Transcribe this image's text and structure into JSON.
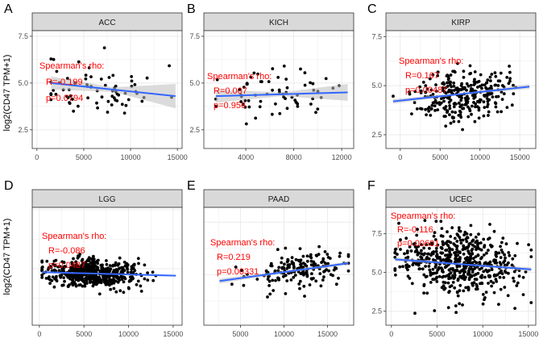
{
  "figure": {
    "ylabel": "log2(CD47 TPM+1)",
    "colors": {
      "strip": "#d9d9d9",
      "panel_border": "#333333",
      "grid": "#ebebeb",
      "point": "#000000",
      "fit_line": "#3366ff",
      "band": "#bdbdbd",
      "annotation": "#ff0000"
    }
  },
  "chart_data": [
    {
      "type": "scatter",
      "letter": "A",
      "title": "ACC",
      "annotation": [
        "Spearman's rho:",
        "R=-0.199",
        "p=0.0794"
      ],
      "xlim": [
        -500,
        15500
      ],
      "ylim": [
        1.5,
        7.8
      ],
      "xticks": [
        0,
        5000,
        10000,
        15000
      ],
      "xtick_labels": [
        "0",
        "5000",
        "10000",
        "15000"
      ],
      "yticks": [
        2.5,
        5.0,
        7.5
      ],
      "ytick_labels": [
        "2.5",
        "5.0",
        "7.5"
      ],
      "fit": {
        "x": [
          1500,
          14800
        ],
        "y": [
          5.0,
          4.3
        ]
      },
      "band_halfwidth": [
        0.35,
        0.12,
        0.65
      ],
      "n": 70,
      "x_center": 6500,
      "x_spread": 3300,
      "x_range": [
        1500,
        14800
      ],
      "y_spread": 0.8,
      "seed": 11
    },
    {
      "type": "scatter",
      "letter": "B",
      "title": "KICH",
      "annotation": [
        "Spearman's rho:",
        "R=0.007",
        "p=0.956"
      ],
      "xlim": [
        500,
        13000
      ],
      "ylim": [
        1.5,
        7.8
      ],
      "xticks": [
        4000,
        8000,
        12000
      ],
      "xtick_labels": [
        "4000",
        "8000",
        "12000"
      ],
      "yticks": [
        2.5,
        5.0,
        7.5
      ],
      "ytick_labels": [
        "2.5",
        "5.0",
        "7.5"
      ],
      "fit": {
        "x": [
          1500,
          12500
        ],
        "y": [
          4.3,
          4.5
        ]
      },
      "band_halfwidth": [
        0.35,
        0.1,
        0.45
      ],
      "n": 66,
      "x_center": 6500,
      "x_spread": 2300,
      "x_range": [
        1500,
        12500
      ],
      "y_spread": 0.6,
      "seed": 23
    },
    {
      "type": "scatter",
      "letter": "C",
      "title": "KIRP",
      "annotation": [
        "Spearman's rho:",
        "R=0.167",
        "p=0.00487"
      ],
      "xlim": [
        -1800,
        17000
      ],
      "ylim": [
        1.8,
        7.8
      ],
      "xticks": [
        0,
        5000,
        10000,
        15000
      ],
      "xtick_labels": [
        "0",
        "5000",
        "10000",
        "15000"
      ],
      "yticks": [
        2.5,
        5.0,
        7.5
      ],
      "ytick_labels": [
        "2.5",
        "5.0",
        "7.5"
      ],
      "fit": {
        "x": [
          -900,
          16200
        ],
        "y": [
          4.2,
          4.95
        ]
      },
      "band_halfwidth": [
        0.12,
        0.04,
        0.12
      ],
      "n": 290,
      "x_center": 7800,
      "x_spread": 2800,
      "x_range": [
        -900,
        16200
      ],
      "y_spread": 0.65,
      "seed": 37
    },
    {
      "type": "scatter",
      "letter": "D",
      "title": "LGG",
      "annotation": [
        "Spearman's rho:",
        "R=-0.086",
        "p=0.0487"
      ],
      "xlim": [
        -800,
        16000
      ],
      "ylim": [
        2.6,
        7.6
      ],
      "xticks": [
        0,
        5000,
        10000,
        15000
      ],
      "xtick_labels": [
        "0",
        "5000",
        "10000",
        "15000"
      ],
      "yticks": [],
      "ytick_labels": [],
      "fit": {
        "x": [
          300,
          15300
        ],
        "y": [
          4.85,
          4.7
        ]
      },
      "band_halfwidth": [
        0.04,
        0.02,
        0.04
      ],
      "n": 520,
      "x_center": 6000,
      "x_spread": 2700,
      "x_range": [
        300,
        15300
      ],
      "y_spread": 0.3,
      "seed": 41
    },
    {
      "type": "scatter",
      "letter": "E",
      "title": "PAAD",
      "annotation": [
        "Spearman's rho:",
        "R=0.219",
        "p=0.00331"
      ],
      "xlim": [
        800,
        18000
      ],
      "ylim": [
        2.6,
        8.2
      ],
      "xticks": [
        5000,
        10000,
        15000
      ],
      "xtick_labels": [
        "5000",
        "10000",
        "15000"
      ],
      "yticks": [],
      "ytick_labels": [],
      "fit": {
        "x": [
          2600,
          17400
        ],
        "y": [
          4.7,
          5.55
        ]
      },
      "band_halfwidth": [
        0.12,
        0.05,
        0.08
      ],
      "n": 175,
      "x_center": 12000,
      "x_spread": 3000,
      "x_range": [
        2600,
        17400
      ],
      "y_spread": 0.45,
      "seed": 53
    },
    {
      "type": "scatter",
      "letter": "F",
      "title": "UCEC",
      "annotation": [
        "Spearman's rho:",
        "R=-0.116",
        "p=0.00601"
      ],
      "xlim": [
        -600,
        15800
      ],
      "ylim": [
        1.6,
        9.2
      ],
      "xticks": [
        0,
        5000,
        10000,
        15000
      ],
      "xtick_labels": [
        "0",
        "5000",
        "10000",
        "15000"
      ],
      "yticks": [
        2.5,
        5.0,
        7.5
      ],
      "ytick_labels": [
        "2.5",
        "5.0",
        "7.5"
      ],
      "fit": {
        "x": [
          400,
          15300
        ],
        "y": [
          5.85,
          5.2
        ]
      },
      "band_halfwidth": [
        0.12,
        0.04,
        0.14
      ],
      "n": 560,
      "x_center": 7200,
      "x_spread": 3100,
      "x_range": [
        400,
        15300
      ],
      "y_spread": 1.0,
      "seed": 67
    }
  ]
}
